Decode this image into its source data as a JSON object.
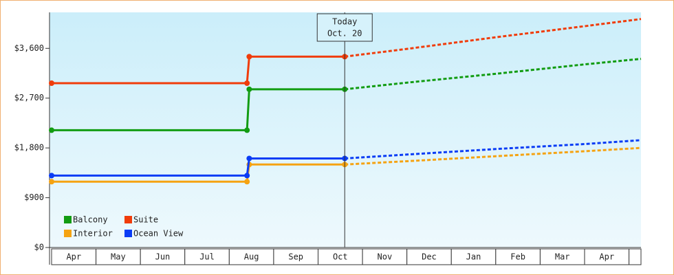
{
  "chart_data": {
    "type": "line",
    "months": [
      "Apr",
      "May",
      "Jun",
      "Jul",
      "Aug",
      "Sep",
      "Oct",
      "Nov",
      "Dec",
      "Jan",
      "Feb",
      "Mar",
      "Apr"
    ],
    "x": [
      0,
      4.4,
      4.45,
      6.6
    ],
    "forecast_x": [
      6.6,
      8,
      10,
      12,
      13.27
    ],
    "xlim": [
      0,
      13.27
    ],
    "ylim": [
      0,
      4250
    ],
    "yticks": [
      {
        "value": 0,
        "label": "$0"
      },
      {
        "value": 900,
        "label": "$900"
      },
      {
        "value": 1800,
        "label": "$1,800"
      },
      {
        "value": 2700,
        "label": "$2,700"
      },
      {
        "value": 3600,
        "label": "$3,600"
      }
    ],
    "today": {
      "x": 6.6,
      "label": [
        "Today",
        "Oct. 20"
      ]
    },
    "series": [
      {
        "name": "Balcony",
        "color": "#129c12",
        "values": [
          2120,
          2120,
          2860,
          2860
        ],
        "forecast_values": [
          2860,
          2980,
          3140,
          3310,
          3410
        ]
      },
      {
        "name": "Suite",
        "color": "#f03c0a",
        "values": [
          2970,
          2970,
          3450,
          3450
        ],
        "forecast_values": [
          3450,
          3590,
          3800,
          4000,
          4130
        ]
      },
      {
        "name": "Interior",
        "color": "#f5a312",
        "values": [
          1190,
          1190,
          1500,
          1500
        ],
        "forecast_values": [
          1500,
          1560,
          1650,
          1740,
          1800
        ]
      },
      {
        "name": "Ocean View",
        "color": "#0a3cf5",
        "values": [
          1300,
          1300,
          1610,
          1610
        ],
        "forecast_values": [
          1610,
          1680,
          1780,
          1870,
          1940
        ]
      }
    ]
  }
}
